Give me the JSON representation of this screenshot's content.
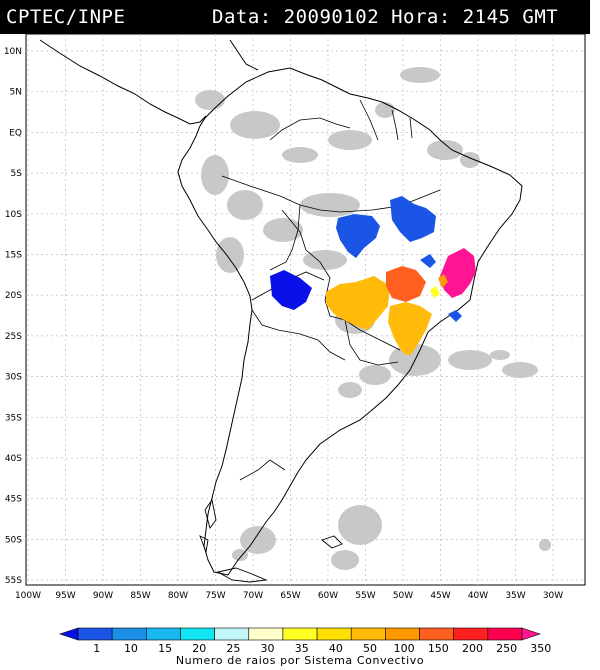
{
  "header": {
    "source": "CPTEC/INPE",
    "datetime": "Data: 20090102 Hora: 2145 GMT"
  },
  "axes": {
    "lat_labels": [
      "10N",
      "5N",
      "EQ",
      "5S",
      "10S",
      "15S",
      "20S",
      "25S",
      "30S",
      "35S",
      "40S",
      "45S",
      "50S",
      "55S"
    ],
    "lon_labels": [
      "100W",
      "95W",
      "90W",
      "85W",
      "80W",
      "75W",
      "70W",
      "65W",
      "60W",
      "55W",
      "50W",
      "45W",
      "40W",
      "35W",
      "30W"
    ]
  },
  "legend": {
    "title": "Numero de raios por Sistema Convectivo",
    "labels": [
      "1",
      "10",
      "15",
      "20",
      "25",
      "30",
      "35",
      "40",
      "50",
      "100",
      "150",
      "200",
      "250",
      "350"
    ],
    "colors": [
      "#0a10e8",
      "#1a55e6",
      "#1b8fe8",
      "#19b8f0",
      "#12e6f2",
      "#c2f5f5",
      "#ffffcc",
      "#ffff22",
      "#ffe000",
      "#ffba0a",
      "#ff9900",
      "#ff6020",
      "#ff2020",
      "#ff0050",
      "#ff1493"
    ]
  },
  "colors": {
    "clouds": "#c8c8c8",
    "land_outline": "#000000",
    "grid": "#bcbcbc"
  }
}
